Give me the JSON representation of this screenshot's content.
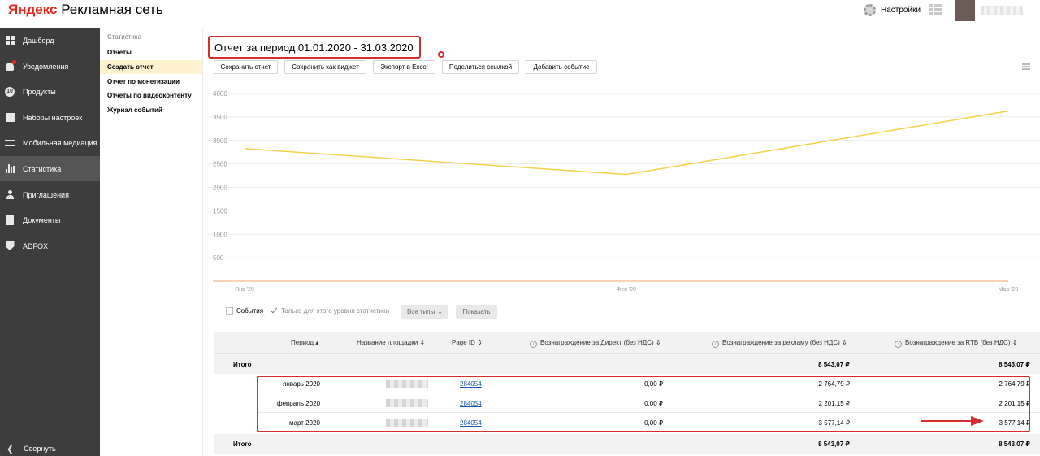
{
  "header": {
    "logo_brand": "Яндекс",
    "logo_product": "Рекламная сеть",
    "settings_label": "Настройки",
    "icons": [
      "gear-icon",
      "apps-grid-icon"
    ]
  },
  "sidebar": {
    "items": [
      {
        "label": "Дашборд",
        "icon": "dashboard-icon"
      },
      {
        "label": "Уведомления",
        "icon": "bell-icon"
      },
      {
        "label": "Продукты",
        "icon": "products-icon",
        "icon_text": "10"
      },
      {
        "label": "Наборы настроек",
        "icon": "settings-set-icon"
      },
      {
        "label": "Мобильная медиация",
        "icon": "mobile-icon"
      },
      {
        "label": "Статистика",
        "icon": "stats-icon",
        "active": true
      },
      {
        "label": "Приглашения",
        "icon": "invite-icon"
      },
      {
        "label": "Документы",
        "icon": "document-icon"
      },
      {
        "label": "ADFOX",
        "icon": "adfox-icon"
      }
    ],
    "collapse_label": "Свернуть"
  },
  "submenu": {
    "title": "Статистика",
    "items": [
      {
        "label": "Отчеты"
      },
      {
        "label": "Создать отчет",
        "active": true
      },
      {
        "label": "Отчет по монетизации"
      },
      {
        "label": "Отчеты по видеоконтенту"
      },
      {
        "label": "Журнал событий"
      }
    ]
  },
  "report": {
    "title": "Отчет за период 01.01.2020 - 31.03.2020"
  },
  "toolbar": {
    "save_report": "Сохранить отчет",
    "save_widget": "Сохранить как виджет",
    "export_excel": "Экспорт в Excel",
    "share_link": "Поделиться ссылкой",
    "add_event": "Добавить событие"
  },
  "chart_data": {
    "type": "line",
    "x": [
      "Янв '20",
      "Фев '20",
      "Мар '20"
    ],
    "series": [
      {
        "values": [
          2825,
          2275,
          3625
        ],
        "color": "#f2d24b"
      }
    ],
    "y_ticks": [
      500,
      1000,
      1500,
      2000,
      2500,
      3000,
      3500,
      4000
    ],
    "ylim": [
      0,
      4000
    ],
    "grid": true
  },
  "chart_controls": {
    "events_label": "События",
    "level_only_label": "Только для этого уровня статистики",
    "types_label": "Все типы",
    "show_label": "Показать"
  },
  "table": {
    "headers": {
      "period": "Период",
      "site_name": "Название площадки",
      "page_id": "Page ID",
      "direct_reward": "Вознаграждение за Директ (без НДС)",
      "ad_reward": "Вознаграждение за рекламу (без НДС)",
      "rtb_reward": "Вознаграждение за RTB (без НДС)"
    },
    "total_label": "Итого",
    "total": {
      "ad_reward": "8 543,07 ₽",
      "rtb_reward": "8 543,07 ₽"
    },
    "rows": [
      {
        "period": "январь 2020",
        "page_id": "284054",
        "direct_reward": "0,00 ₽",
        "ad_reward": "2 764,79 ₽",
        "rtb_reward": "2 764,79 ₽"
      },
      {
        "period": "февраль 2020",
        "page_id": "284054",
        "direct_reward": "0,00 ₽",
        "ad_reward": "2 201,15 ₽",
        "rtb_reward": "2 201,15 ₽"
      },
      {
        "period": "март 2020",
        "page_id": "284054",
        "direct_reward": "0,00 ₽",
        "ad_reward": "3 577,14 ₽",
        "rtb_reward": "3 577,14 ₽"
      }
    ]
  },
  "colors": {
    "sidebar_bg": "#3d3d3d",
    "sidebar_active": "#555555",
    "submenu_active": "#fdf4cf",
    "annotation_red": "#d62e2e",
    "chart_line": "#f2d24b",
    "link": "#1a56a6"
  }
}
